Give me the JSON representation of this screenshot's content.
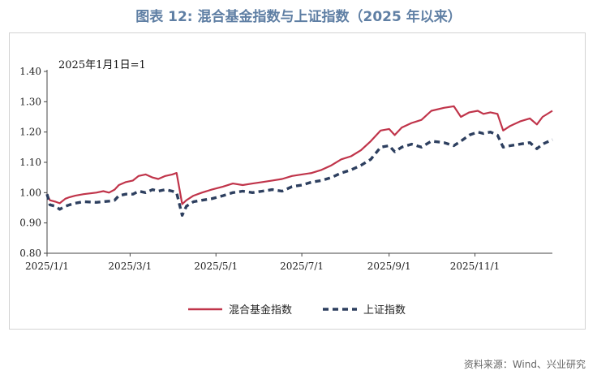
{
  "title": "图表 12: 混合基金指数与上证指数（2025 年以来）",
  "source": "资料来源：Wind、兴业研究",
  "colors": {
    "title": "#5f7fa4",
    "mixed_fund": "#c0344a",
    "shanghai": "#2d3f5f"
  },
  "chart_data": {
    "type": "line",
    "annotation": "2025年1月1日=1",
    "ylim": [
      0.8,
      1.4
    ],
    "yticks": [
      "0.80",
      "0.90",
      "1.00",
      "1.10",
      "1.20",
      "1.30",
      "1.40"
    ],
    "xlim": [
      "2025-01-01",
      "2025-12-26"
    ],
    "xticks": [
      "2025/1/1",
      "2025/3/1",
      "2025/5/1",
      "2025/7/1",
      "2025/9/1",
      "2025/11/1"
    ],
    "legend_position": "bottom",
    "series": [
      {
        "name": "混合基金指数",
        "style": "solid",
        "points": [
          [
            "2025-01-01",
            0.995
          ],
          [
            "2025-01-03",
            0.975
          ],
          [
            "2025-01-07",
            0.97
          ],
          [
            "2025-01-10",
            0.965
          ],
          [
            "2025-01-14",
            0.98
          ],
          [
            "2025-01-17",
            0.985
          ],
          [
            "2025-01-21",
            0.99
          ],
          [
            "2025-01-27",
            0.995
          ],
          [
            "2025-02-05",
            1.0
          ],
          [
            "2025-02-10",
            1.005
          ],
          [
            "2025-02-14",
            1.0
          ],
          [
            "2025-02-18",
            1.01
          ],
          [
            "2025-02-21",
            1.025
          ],
          [
            "2025-02-26",
            1.035
          ],
          [
            "2025-03-03",
            1.04
          ],
          [
            "2025-03-07",
            1.055
          ],
          [
            "2025-03-12",
            1.06
          ],
          [
            "2025-03-17",
            1.05
          ],
          [
            "2025-03-21",
            1.045
          ],
          [
            "2025-03-26",
            1.055
          ],
          [
            "2025-03-31",
            1.06
          ],
          [
            "2025-04-03",
            1.065
          ],
          [
            "2025-04-07",
            0.962
          ],
          [
            "2025-04-10",
            0.975
          ],
          [
            "2025-04-15",
            0.99
          ],
          [
            "2025-04-21",
            1.0
          ],
          [
            "2025-04-28",
            1.01
          ],
          [
            "2025-05-06",
            1.02
          ],
          [
            "2025-05-13",
            1.03
          ],
          [
            "2025-05-20",
            1.025
          ],
          [
            "2025-05-27",
            1.03
          ],
          [
            "2025-06-03",
            1.035
          ],
          [
            "2025-06-10",
            1.04
          ],
          [
            "2025-06-17",
            1.045
          ],
          [
            "2025-06-24",
            1.055
          ],
          [
            "2025-07-01",
            1.06
          ],
          [
            "2025-07-08",
            1.065
          ],
          [
            "2025-07-15",
            1.075
          ],
          [
            "2025-07-22",
            1.09
          ],
          [
            "2025-07-29",
            1.11
          ],
          [
            "2025-08-05",
            1.12
          ],
          [
            "2025-08-12",
            1.14
          ],
          [
            "2025-08-19",
            1.17
          ],
          [
            "2025-08-26",
            1.205
          ],
          [
            "2025-09-01",
            1.21
          ],
          [
            "2025-09-05",
            1.19
          ],
          [
            "2025-09-10",
            1.215
          ],
          [
            "2025-09-17",
            1.23
          ],
          [
            "2025-09-24",
            1.24
          ],
          [
            "2025-10-01",
            1.27
          ],
          [
            "2025-10-10",
            1.28
          ],
          [
            "2025-10-17",
            1.285
          ],
          [
            "2025-10-22",
            1.25
          ],
          [
            "2025-10-28",
            1.265
          ],
          [
            "2025-11-03",
            1.27
          ],
          [
            "2025-11-07",
            1.26
          ],
          [
            "2025-11-12",
            1.265
          ],
          [
            "2025-11-17",
            1.26
          ],
          [
            "2025-11-21",
            1.205
          ],
          [
            "2025-11-26",
            1.22
          ],
          [
            "2025-12-03",
            1.235
          ],
          [
            "2025-12-10",
            1.245
          ],
          [
            "2025-12-15",
            1.225
          ],
          [
            "2025-12-19",
            1.25
          ],
          [
            "2025-12-26",
            1.27
          ]
        ]
      },
      {
        "name": "上证指数",
        "style": "dashed",
        "points": [
          [
            "2025-01-01",
            0.995
          ],
          [
            "2025-01-03",
            0.96
          ],
          [
            "2025-01-07",
            0.955
          ],
          [
            "2025-01-10",
            0.945
          ],
          [
            "2025-01-14",
            0.955
          ],
          [
            "2025-01-17",
            0.96
          ],
          [
            "2025-01-21",
            0.965
          ],
          [
            "2025-01-27",
            0.97
          ],
          [
            "2025-02-05",
            0.968
          ],
          [
            "2025-02-10",
            0.97
          ],
          [
            "2025-02-14",
            0.972
          ],
          [
            "2025-02-18",
            0.975
          ],
          [
            "2025-02-21",
            0.99
          ],
          [
            "2025-02-26",
            0.995
          ],
          [
            "2025-03-03",
            0.995
          ],
          [
            "2025-03-07",
            1.005
          ],
          [
            "2025-03-12",
            1.0
          ],
          [
            "2025-03-17",
            1.01
          ],
          [
            "2025-03-21",
            1.005
          ],
          [
            "2025-03-26",
            1.01
          ],
          [
            "2025-03-31",
            1.005
          ],
          [
            "2025-04-03",
            1.0
          ],
          [
            "2025-04-07",
            0.925
          ],
          [
            "2025-04-10",
            0.955
          ],
          [
            "2025-04-15",
            0.97
          ],
          [
            "2025-04-21",
            0.975
          ],
          [
            "2025-04-28",
            0.98
          ],
          [
            "2025-05-06",
            0.99
          ],
          [
            "2025-05-13",
            1.0
          ],
          [
            "2025-05-20",
            1.005
          ],
          [
            "2025-05-27",
            1.0
          ],
          [
            "2025-06-03",
            1.005
          ],
          [
            "2025-06-10",
            1.01
          ],
          [
            "2025-06-17",
            1.005
          ],
          [
            "2025-06-24",
            1.02
          ],
          [
            "2025-07-01",
            1.025
          ],
          [
            "2025-07-08",
            1.035
          ],
          [
            "2025-07-15",
            1.04
          ],
          [
            "2025-07-22",
            1.05
          ],
          [
            "2025-07-29",
            1.065
          ],
          [
            "2025-08-05",
            1.075
          ],
          [
            "2025-08-12",
            1.09
          ],
          [
            "2025-08-19",
            1.11
          ],
          [
            "2025-08-26",
            1.15
          ],
          [
            "2025-09-01",
            1.155
          ],
          [
            "2025-09-05",
            1.135
          ],
          [
            "2025-09-10",
            1.15
          ],
          [
            "2025-09-17",
            1.16
          ],
          [
            "2025-09-24",
            1.15
          ],
          [
            "2025-10-01",
            1.17
          ],
          [
            "2025-10-10",
            1.165
          ],
          [
            "2025-10-17",
            1.155
          ],
          [
            "2025-10-22",
            1.17
          ],
          [
            "2025-10-28",
            1.19
          ],
          [
            "2025-11-03",
            1.2
          ],
          [
            "2025-11-07",
            1.195
          ],
          [
            "2025-11-12",
            1.2
          ],
          [
            "2025-11-17",
            1.19
          ],
          [
            "2025-11-21",
            1.15
          ],
          [
            "2025-11-26",
            1.155
          ],
          [
            "2025-12-03",
            1.16
          ],
          [
            "2025-12-10",
            1.165
          ],
          [
            "2025-12-15",
            1.145
          ],
          [
            "2025-12-19",
            1.16
          ],
          [
            "2025-12-26",
            1.175
          ]
        ]
      }
    ]
  }
}
